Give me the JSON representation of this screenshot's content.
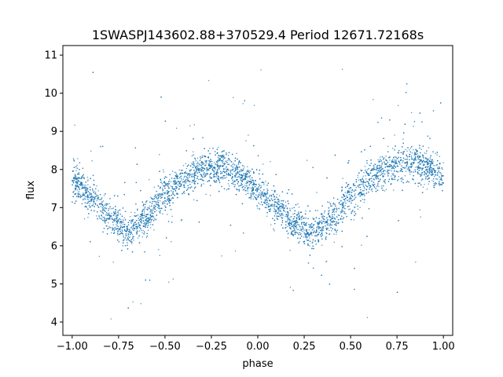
{
  "chart_data": {
    "type": "scatter",
    "title": "1SWASPJ143602.88+370529.4 Period 12671.72168s",
    "xlabel": "phase",
    "ylabel": "flux",
    "xlim": [
      -1.05,
      1.05
    ],
    "ylim": [
      3.65,
      11.25
    ],
    "x_ticks": [
      -1.0,
      -0.75,
      -0.5,
      -0.25,
      0.0,
      0.25,
      0.5,
      0.75,
      1.0
    ],
    "x_tick_labels": [
      "−1.00",
      "−0.75",
      "−0.50",
      "−0.25",
      "0.00",
      "0.25",
      "0.50",
      "0.75",
      "1.00"
    ],
    "y_ticks": [
      4,
      5,
      6,
      7,
      8,
      9,
      10,
      11
    ],
    "y_tick_labels": [
      "4",
      "5",
      "6",
      "7",
      "8",
      "9",
      "10",
      "11"
    ],
    "grid": false,
    "marker_color": "#1f77b4",
    "series": [
      {
        "x": [
          -1.0,
          -0.9,
          -0.8,
          -0.7,
          -0.6,
          -0.5,
          -0.4,
          -0.3,
          -0.2,
          -0.1,
          0.0,
          0.1,
          0.2,
          0.3,
          0.4,
          0.5,
          0.6,
          0.7,
          0.8,
          0.9,
          1.0
        ],
        "y": [
          7.7,
          7.35,
          6.75,
          6.35,
          6.75,
          7.35,
          7.75,
          8.0,
          8.1,
          7.85,
          7.45,
          7.0,
          6.55,
          6.35,
          6.7,
          7.3,
          7.75,
          8.0,
          8.15,
          8.1,
          7.9
        ]
      }
    ]
  }
}
